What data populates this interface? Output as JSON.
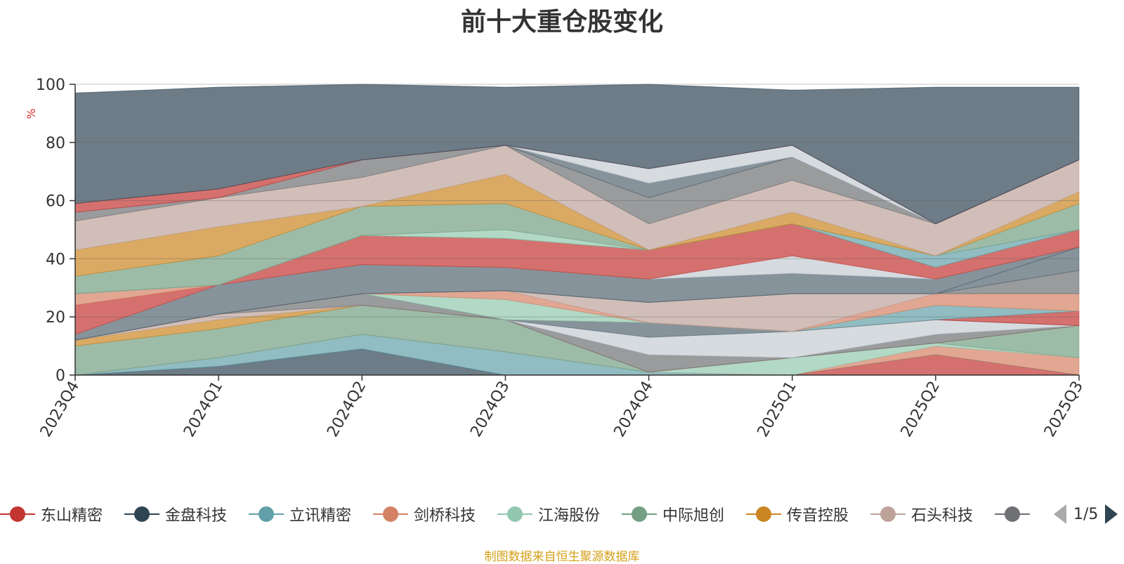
{
  "chart_data": {
    "type": "area",
    "title": "前十大重仓股变化",
    "ylabel": "%",
    "ylim": [
      0,
      100
    ],
    "yticks": [
      0,
      20,
      40,
      60,
      80,
      100
    ],
    "categories": [
      "2023Q4",
      "2024Q1",
      "2024Q2",
      "2024Q3",
      "2024Q4",
      "2025Q1",
      "2025Q2",
      "2025Q3"
    ],
    "grid": true,
    "series": [
      {
        "name": "东山精密",
        "color": "#c23531",
        "values": [
          0,
          0,
          0,
          0,
          0,
          0,
          7,
          0
        ]
      },
      {
        "name": "",
        "color": "#2f4554",
        "values": [
          0,
          3,
          9,
          0,
          0,
          0,
          0,
          0
        ]
      },
      {
        "name": "立讯精密",
        "color": "#61a0a8",
        "values": [
          0,
          3,
          5,
          8,
          1,
          0,
          0,
          0
        ]
      },
      {
        "name": "剑桥科技",
        "color": "#d48265",
        "values": [
          0,
          0,
          0,
          0,
          0,
          0,
          3,
          6
        ]
      },
      {
        "name": "",
        "color": "#91c7ae",
        "values": [
          0,
          0,
          0,
          0,
          0,
          6,
          1,
          0
        ]
      },
      {
        "name": "中际旭创",
        "color": "#749f83",
        "values": [
          10,
          10,
          10,
          11,
          0,
          0,
          0,
          11
        ]
      },
      {
        "name": "传音控股",
        "color": "#ca8622",
        "values": [
          2,
          3,
          0,
          0,
          0,
          0,
          0,
          0
        ]
      },
      {
        "name": "石头科技",
        "color": "#bda29a",
        "values": [
          0,
          2,
          0,
          0,
          0,
          0,
          0,
          0
        ]
      },
      {
        "name": "",
        "color": "#6e7074",
        "values": [
          0,
          0,
          4,
          0,
          6,
          0,
          3,
          0
        ]
      },
      {
        "name": "",
        "color": "#c4ccd3",
        "values": [
          0,
          0,
          0,
          0,
          6,
          9,
          5,
          0
        ]
      },
      {
        "name": "",
        "color": "#546570",
        "values": [
          0,
          0,
          0,
          0,
          5,
          0,
          0,
          0
        ]
      },
      {
        "name": "",
        "color": "#c23531",
        "values": [
          0,
          0,
          0,
          0,
          0,
          0,
          0,
          5
        ]
      },
      {
        "name": "",
        "color": "#61a0a8",
        "values": [
          0,
          0,
          0,
          0,
          0,
          0,
          5,
          0
        ]
      },
      {
        "name": "",
        "color": "#91c7ae",
        "values": [
          0,
          0,
          0,
          7,
          0,
          0,
          0,
          0
        ]
      },
      {
        "name": "",
        "color": "#d48265",
        "values": [
          0,
          0,
          0,
          3,
          0,
          0,
          4,
          6
        ]
      },
      {
        "name": "",
        "color": "#bda29a",
        "values": [
          0,
          0,
          0,
          0,
          7,
          13,
          0,
          0
        ]
      },
      {
        "name": "",
        "color": "#6e7074",
        "values": [
          0,
          0,
          0,
          0,
          0,
          0,
          0,
          8
        ]
      },
      {
        "name": "",
        "color": "#546570",
        "values": [
          0,
          0,
          0,
          0,
          0,
          0,
          0,
          8
        ]
      },
      {
        "name": "",
        "color": "#546570",
        "values": [
          2,
          10,
          10,
          8,
          8,
          7,
          5,
          0
        ]
      },
      {
        "name": "",
        "color": "#c4ccd3",
        "values": [
          0,
          0,
          0,
          0,
          0,
          6,
          0,
          0
        ]
      },
      {
        "name": "",
        "color": "#c23531",
        "values": [
          10,
          0,
          10,
          10,
          10,
          11,
          4,
          6
        ]
      },
      {
        "name": "",
        "color": "#d48265",
        "values": [
          4,
          0,
          0,
          0,
          0,
          0,
          0,
          0
        ]
      },
      {
        "name": "",
        "color": "#61a0a8",
        "values": [
          0,
          0,
          0,
          0,
          0,
          0,
          4,
          0
        ]
      },
      {
        "name": "",
        "color": "#91c7ae",
        "values": [
          0,
          0,
          0,
          3,
          0,
          0,
          0,
          0
        ]
      },
      {
        "name": "",
        "color": "#749f83",
        "values": [
          6,
          10,
          10,
          9,
          0,
          0,
          0,
          9
        ]
      },
      {
        "name": "",
        "color": "#ca8622",
        "values": [
          9,
          10,
          0,
          10,
          0,
          4,
          0,
          4
        ]
      },
      {
        "name": "",
        "color": "#bda29a",
        "values": [
          10,
          10,
          10,
          10,
          9,
          11,
          11,
          11
        ]
      },
      {
        "name": "",
        "color": "#6e7074",
        "values": [
          3,
          0,
          6,
          0,
          9,
          8,
          0,
          0
        ]
      },
      {
        "name": "",
        "color": "#546570",
        "values": [
          0,
          0,
          0,
          0,
          5,
          0,
          0,
          0
        ]
      },
      {
        "name": "",
        "color": "#c4ccd3",
        "values": [
          0,
          0,
          0,
          0,
          5,
          4,
          0,
          0
        ]
      },
      {
        "name": "",
        "color": "#c23531",
        "values": [
          3,
          3,
          0,
          0,
          0,
          0,
          0,
          0
        ]
      },
      {
        "name": "",
        "color": "#2f4554",
        "values": [
          38,
          35,
          26,
          20,
          29,
          19,
          47,
          25
        ]
      }
    ]
  },
  "legend": {
    "items": [
      {
        "label": "东山精密",
        "color": "#c23531"
      },
      {
        "label": "金盘科技",
        "color": "#2f4554"
      },
      {
        "label": "立讯精密",
        "color": "#61a0a8"
      },
      {
        "label": "剑桥科技",
        "color": "#d48265"
      },
      {
        "label": "江海股份",
        "color": "#91c7ae"
      },
      {
        "label": "中际旭创",
        "color": "#749f83"
      },
      {
        "label": "传音控股",
        "color": "#ca8622"
      },
      {
        "label": "石头科技",
        "color": "#bda29a"
      },
      {
        "label": "",
        "color": "#6e7074"
      }
    ],
    "page": "1/5",
    "prev_icon": "triangle-left-icon",
    "next_icon": "triangle-right-icon"
  },
  "footer": {
    "source": "制图数据来自恒生聚源数据库"
  },
  "colors": {
    "axis": "#333333",
    "ylabel": "#d83030",
    "source": "#d4a017"
  }
}
